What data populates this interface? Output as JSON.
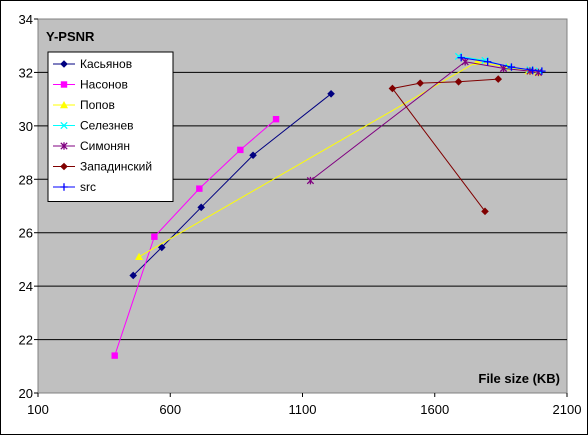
{
  "chart_data": {
    "type": "line",
    "title": "Y-PSNR",
    "xlabel": "File size (KB)",
    "ylabel": "",
    "xlim": [
      100,
      2100
    ],
    "ylim": [
      20,
      34
    ],
    "x_ticks": [
      100,
      600,
      1100,
      1600,
      2100
    ],
    "y_ticks": [
      20,
      22,
      24,
      26,
      28,
      30,
      32,
      34
    ],
    "grid": "horizontal",
    "plot_background": "#C0C0C0",
    "legend_position": "top-left",
    "series": [
      {
        "name": "Касьянов",
        "color": "#000080",
        "marker": "diamond",
        "x": [
          460,
          568,
          717,
          913,
          1208
        ],
        "y": [
          24.4,
          25.45,
          26.95,
          28.9,
          31.2
        ]
      },
      {
        "name": "Насонов",
        "color": "#FF00FF",
        "marker": "square",
        "x": [
          390,
          540,
          710,
          865,
          1000
        ],
        "y": [
          21.4,
          25.85,
          27.65,
          29.1,
          30.25
        ]
      },
      {
        "name": "Попов",
        "color": "#FFFF00",
        "marker": "triangle",
        "x": [
          482,
          1760,
          1875,
          1955,
          1990
        ],
        "y": [
          25.1,
          32.4,
          32.2,
          32.05,
          32.0
        ]
      },
      {
        "name": "Селезнев",
        "color": "#00FFFF",
        "marker": "x",
        "x": [
          1690,
          1790,
          1880,
          1960,
          1995
        ],
        "y": [
          32.6,
          32.45,
          32.2,
          32.1,
          32.05
        ]
      },
      {
        "name": "Симонян",
        "color": "#800080",
        "marker": "star",
        "x": [
          1130,
          1715,
          1860,
          1960,
          1992
        ],
        "y": [
          27.95,
          32.4,
          32.15,
          32.05,
          32.0
        ]
      },
      {
        "name": "Западинский",
        "color": "#800000",
        "marker": "diamond",
        "x": [
          1790,
          1440,
          1545,
          1690,
          1840
        ],
        "y": [
          26.8,
          31.4,
          31.6,
          31.65,
          31.75
        ]
      },
      {
        "name": "src",
        "color": "#0000FF",
        "marker": "plus",
        "x": [
          1700,
          1800,
          1890,
          1970,
          2005
        ],
        "y": [
          32.55,
          32.4,
          32.2,
          32.08,
          32.05
        ]
      }
    ]
  }
}
